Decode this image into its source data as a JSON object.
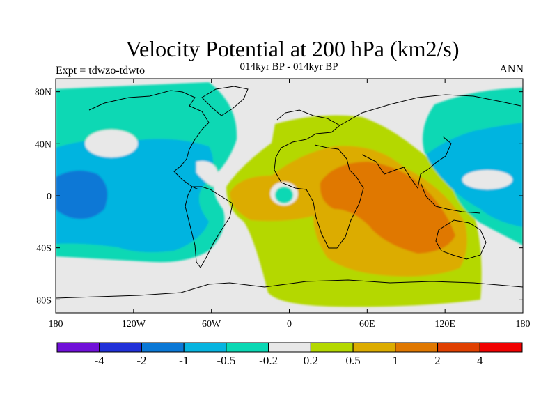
{
  "chart_data": {
    "type": "heatmap",
    "title": "Velocity Potential at 200 hPa (km2/s)",
    "subtitle_center": "014kyr BP - 014kyr BP",
    "subtitle_left": "Expt = tdwzo-tdwto",
    "subtitle_right": "ANN",
    "x_ticks": [
      "180",
      "120W",
      "60W",
      "0",
      "60E",
      "120E",
      "180"
    ],
    "x_tick_values": [
      -180,
      -120,
      -60,
      0,
      60,
      120,
      180
    ],
    "y_ticks": [
      "80N",
      "40N",
      "0",
      "40S",
      "80S"
    ],
    "y_tick_values": [
      80,
      40,
      0,
      -40,
      -80
    ],
    "xlim": [
      -180,
      180
    ],
    "ylim": [
      -90,
      90
    ],
    "colorbar": {
      "colors": [
        "#7010d8",
        "#2030d8",
        "#0a78d6",
        "#06b4e0",
        "#0ad8b4",
        "#e8e8e8",
        "#b4d800",
        "#dcac00",
        "#e07800",
        "#e04000",
        "#f00000"
      ],
      "labels": [
        "-4",
        "-2",
        "-1",
        "-0.5",
        "-0.2",
        "0.2",
        "0.5",
        "1",
        "2",
        "4"
      ]
    },
    "regions": [
      {
        "name": "Pacific/Americas negative",
        "level": "-0.2 to -0.5",
        "lon_range": [
          -180,
          -40
        ],
        "lat_range": [
          -50,
          80
        ]
      },
      {
        "name": "East Pacific core",
        "level": "-1 to -0.5",
        "lon_range": [
          -175,
          -105
        ],
        "lat_range": [
          -25,
          40
        ]
      },
      {
        "name": "Central Pacific minimum",
        "level": "-2 to -1",
        "lon_range": [
          -175,
          -130
        ],
        "lat_range": [
          -20,
          15
        ]
      },
      {
        "name": "West Pacific negative",
        "level": "-0.2 to -0.5",
        "lon_range": [
          100,
          180
        ],
        "lat_range": [
          -30,
          80
        ]
      },
      {
        "name": "Africa/Indian Ocean positive",
        "level": "0.2 to 0.5",
        "lon_range": [
          -50,
          150
        ],
        "lat_range": [
          -75,
          55
        ]
      },
      {
        "name": "Indian Ocean maximum",
        "level": "1 to 2",
        "lon_range": [
          25,
          110
        ],
        "lat_range": [
          -40,
          20
        ]
      },
      {
        "name": "Gulf of Guinea negative",
        "level": "-0.2 to -0.5",
        "lon_range": [
          -12,
          2
        ],
        "lat_range": [
          -8,
          10
        ]
      }
    ]
  }
}
